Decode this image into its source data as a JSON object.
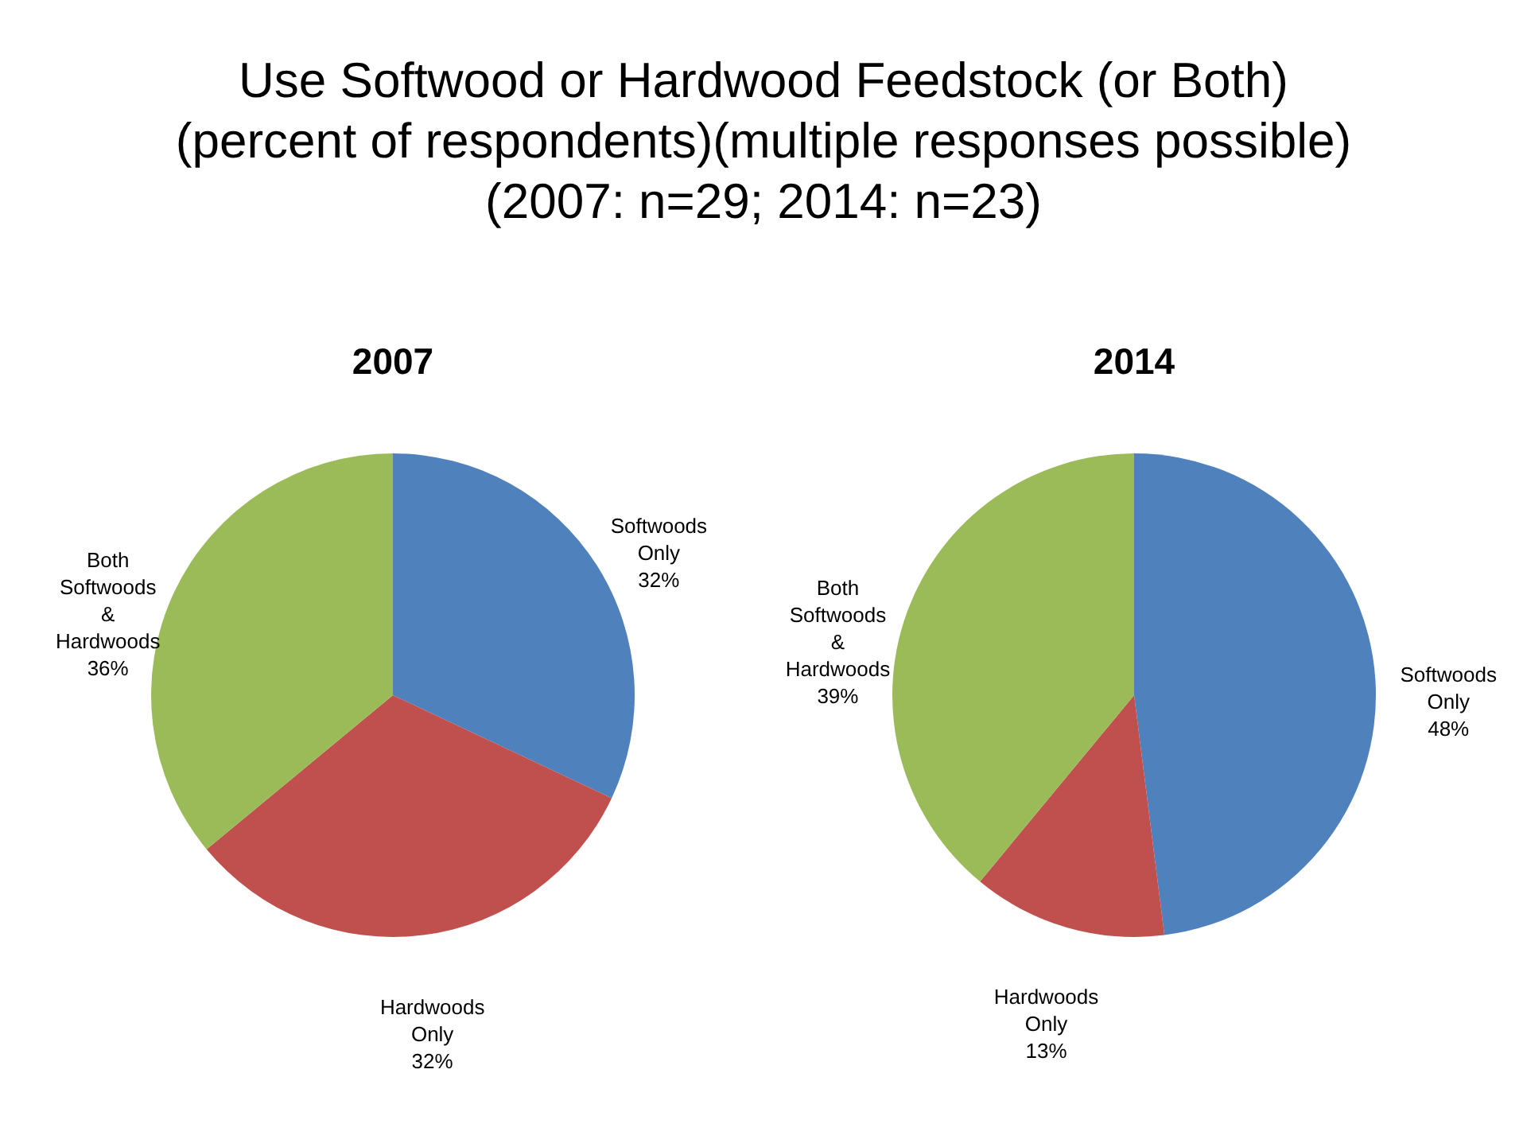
{
  "chart_data": [
    {
      "type": "other",
      "title": "Use Softwood or Hardwood Feedstock (or Both)",
      "subtitle": "(percent of respondents)(multiple responses possible)\n(2007: n=29; 2014: n=23)"
    },
    {
      "type": "pie",
      "title": "2007",
      "categories": [
        "Softwoods Only",
        "Hardwoods Only",
        "Both Softwoods & Hardwoods"
      ],
      "values": [
        32,
        32,
        36
      ],
      "value_labels": [
        "32%",
        "32%",
        "36%"
      ],
      "colors": [
        "#4f81bd",
        "#c0504d",
        "#9bbb59"
      ],
      "legend": false
    },
    {
      "type": "pie",
      "title": "2014",
      "categories": [
        "Softwoods Only",
        "Hardwoods Only",
        "Both Softwoods & Hardwoods"
      ],
      "values": [
        48,
        13,
        39
      ],
      "value_labels": [
        "48%",
        "13%",
        "39%"
      ],
      "colors": [
        "#4f81bd",
        "#c0504d",
        "#9bbb59"
      ],
      "legend": false
    }
  ]
}
